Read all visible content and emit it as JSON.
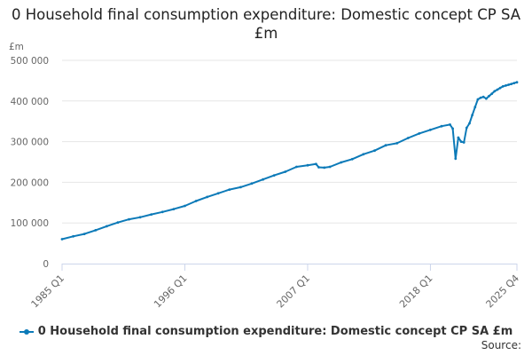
{
  "chart_data": {
    "type": "line",
    "title": "0 Household final consumption expenditure: Domestic concept CP SA £m",
    "ylabel": "£m",
    "xlabel": "",
    "ylim": [
      0,
      500000
    ],
    "yticks": [
      0,
      100000,
      200000,
      300000,
      400000,
      500000
    ],
    "ytick_labels": [
      "0",
      "100 000",
      "200 000",
      "300 000",
      "400 000",
      "500 000"
    ],
    "xticks": [
      "1985 Q1",
      "1996 Q1",
      "2007 Q1",
      "2018 Q1",
      "2025 Q4"
    ],
    "grid": true,
    "legend": "bottom",
    "series": [
      {
        "name": "0 Household final consumption expenditure: Domestic concept CP SA £m",
        "color": "#0c7ab8",
        "x": [
          "1985 Q1",
          "1986 Q1",
          "1987 Q1",
          "1988 Q1",
          "1989 Q1",
          "1990 Q1",
          "1991 Q1",
          "1992 Q1",
          "1993 Q1",
          "1994 Q1",
          "1995 Q1",
          "1996 Q1",
          "1997 Q1",
          "1998 Q1",
          "1999 Q1",
          "2000 Q1",
          "2001 Q1",
          "2002 Q1",
          "2003 Q1",
          "2004 Q1",
          "2005 Q1",
          "2006 Q1",
          "2007 Q1",
          "2007 Q4",
          "2008 Q1",
          "2008 Q3",
          "2009 Q1",
          "2010 Q1",
          "2011 Q1",
          "2012 Q1",
          "2013 Q1",
          "2014 Q1",
          "2015 Q1",
          "2016 Q1",
          "2017 Q1",
          "2018 Q1",
          "2019 Q1",
          "2019 Q4",
          "2020 Q1",
          "2020 Q2",
          "2020 Q3",
          "2020 Q4",
          "2021 Q1",
          "2021 Q2",
          "2021 Q3",
          "2021 Q4",
          "2022 Q1",
          "2022 Q2",
          "2022 Q3",
          "2022 Q4",
          "2023 Q1",
          "2023 Q2",
          "2023 Q3",
          "2023 Q4",
          "2024 Q1",
          "2024 Q2",
          "2024 Q3",
          "2024 Q4",
          "2025 Q1",
          "2025 Q2",
          "2025 Q3",
          "2025 Q4"
        ],
        "values": [
          60000,
          67000,
          73000,
          82000,
          92000,
          101000,
          109000,
          114000,
          121000,
          127000,
          134000,
          142000,
          154000,
          164000,
          173000,
          182000,
          188000,
          197000,
          207000,
          217000,
          226000,
          238000,
          242000,
          245000,
          237000,
          236000,
          238000,
          249000,
          257000,
          269000,
          278000,
          291000,
          296000,
          309000,
          320000,
          329000,
          338000,
          342000,
          332000,
          258000,
          310000,
          300000,
          298000,
          334000,
          345000,
          365000,
          385000,
          404000,
          408000,
          410000,
          406000,
          412000,
          418000,
          424000,
          428000,
          432000,
          436000,
          438000,
          440000,
          442000,
          444000,
          446000
        ]
      }
    ]
  },
  "source_label": "Source:"
}
